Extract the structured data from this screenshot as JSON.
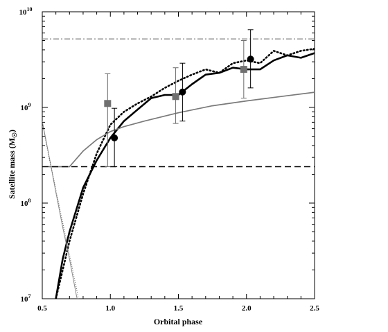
{
  "chart_data": {
    "type": "line",
    "title": "",
    "xlabel": "Orbital phase",
    "ylabel_main": "Satellite mass (M",
    "ylabel_sub": "☉",
    "ylabel_close": ")",
    "xlim": [
      0.5,
      2.5
    ],
    "ylim_log10": [
      7,
      10
    ],
    "y_scale": "log",
    "grid": false,
    "legend": "none",
    "x_ticks": [
      {
        "value": 0.5,
        "label": "0.5"
      },
      {
        "value": 1.0,
        "label": "1.0"
      },
      {
        "value": 1.5,
        "label": "1.5"
      },
      {
        "value": 2.0,
        "label": "2.0"
      },
      {
        "value": 2.5,
        "label": "2.5"
      }
    ],
    "x_minor_step": 0.1,
    "y_ticks": [
      {
        "exp": 7,
        "base": "10",
        "sup": "7"
      },
      {
        "exp": 8,
        "base": "10",
        "sup": "8"
      },
      {
        "exp": 9,
        "base": "10",
        "sup": "9"
      },
      {
        "exp": 10,
        "base": "10",
        "sup": "10"
      }
    ],
    "series": [
      {
        "style": "solid-thick",
        "color": "#000000",
        "x": [
          0.6,
          0.65,
          0.7,
          0.8,
          0.9,
          1.0,
          1.1,
          1.2,
          1.3,
          1.4,
          1.5,
          1.6,
          1.7,
          1.8,
          1.9,
          2.0,
          2.1,
          2.2,
          2.3,
          2.4,
          2.5
        ],
        "y": [
          10000000.0,
          26000000.0,
          50000000.0,
          145000000.0,
          280000000.0,
          480000000.0,
          720000000.0,
          950000000.0,
          1250000000.0,
          1350000000.0,
          1350000000.0,
          1750000000.0,
          2200000000.0,
          2300000000.0,
          2600000000.0,
          2500000000.0,
          2500000000.0,
          3100000000.0,
          3500000000.0,
          3300000000.0,
          3700000000.0
        ]
      },
      {
        "style": "dotted-thick",
        "color": "#000000",
        "x": [
          0.6,
          0.65,
          0.7,
          0.8,
          0.9,
          1.0,
          1.1,
          1.2,
          1.3,
          1.4,
          1.5,
          1.6,
          1.7,
          1.8,
          1.9,
          2.0,
          2.1,
          2.2,
          2.3,
          2.4,
          2.5
        ],
        "y": [
          10000000.0,
          20000000.0,
          40000000.0,
          125000000.0,
          330000000.0,
          660000000.0,
          900000000.0,
          1100000000.0,
          1300000000.0,
          1600000000.0,
          1900000000.0,
          2200000000.0,
          2500000000.0,
          2300000000.0,
          2900000000.0,
          3100000000.0,
          2900000000.0,
          3900000000.0,
          3500000000.0,
          3900000000.0,
          4100000000.0
        ]
      },
      {
        "style": "solid-gray",
        "color": "#7a7a7a",
        "x": [
          0.55,
          0.7,
          0.8,
          0.9,
          1.0,
          1.1,
          1.25,
          1.5,
          1.75,
          2.0,
          2.25,
          2.5
        ],
        "y": [
          240000000.0,
          240000000.0,
          350000000.0,
          460000000.0,
          560000000.0,
          630000000.0,
          720000000.0,
          880000000.0,
          1040000000.0,
          1170000000.0,
          1300000000.0,
          1440000000.0
        ]
      },
      {
        "style": "thin-gray",
        "color": "#888888",
        "x": [
          0.5,
          0.55,
          0.6,
          0.65,
          0.7,
          0.75,
          0.8
        ],
        "y": [
          720000000.0,
          310000000.0,
          130000000.0,
          56000000.0,
          26000000.0,
          11000000.0,
          5000000.0
        ]
      },
      {
        "style": "thin-dotted",
        "color": "#555555",
        "x": [
          0.5,
          0.55,
          0.6,
          0.65,
          0.7,
          0.75,
          0.82
        ],
        "y": [
          680000000.0,
          300000000.0,
          140000000.0,
          62000000.0,
          29000000.0,
          13000000.0,
          4000000.0
        ]
      },
      {
        "style": "dashed",
        "color": "#000000",
        "x": [
          0.5,
          2.5
        ],
        "y": [
          240000000.0,
          240000000.0
        ]
      },
      {
        "style": "dashdot-gray",
        "color": "#8a8a8a",
        "x": [
          0.5,
          2.5
        ],
        "y": [
          5200000000.0,
          5200000000.0
        ]
      }
    ],
    "points": [
      {
        "marker": "square",
        "color": "#707070",
        "x": 0.98,
        "y": 1100000000.0,
        "y_low": 240000000.0,
        "y_high": 2250000000.0
      },
      {
        "marker": "circle",
        "color": "#000000",
        "x": 1.03,
        "y": 480000000.0,
        "y_low": 240000000.0,
        "y_high": 980000000.0
      },
      {
        "marker": "square",
        "color": "#707070",
        "x": 1.48,
        "y": 1300000000.0,
        "y_low": 680000000.0,
        "y_high": 2600000000.0
      },
      {
        "marker": "circle",
        "color": "#000000",
        "x": 1.53,
        "y": 1450000000.0,
        "y_low": 720000000.0,
        "y_high": 2900000000.0
      },
      {
        "marker": "square",
        "color": "#707070",
        "x": 1.98,
        "y": 2500000000.0,
        "y_low": 1250000000.0,
        "y_high": 5000000000.0
      },
      {
        "marker": "circle",
        "color": "#000000",
        "x": 2.03,
        "y": 3200000000.0,
        "y_low": 1600000000.0,
        "y_high": 6500000000.0
      }
    ]
  }
}
